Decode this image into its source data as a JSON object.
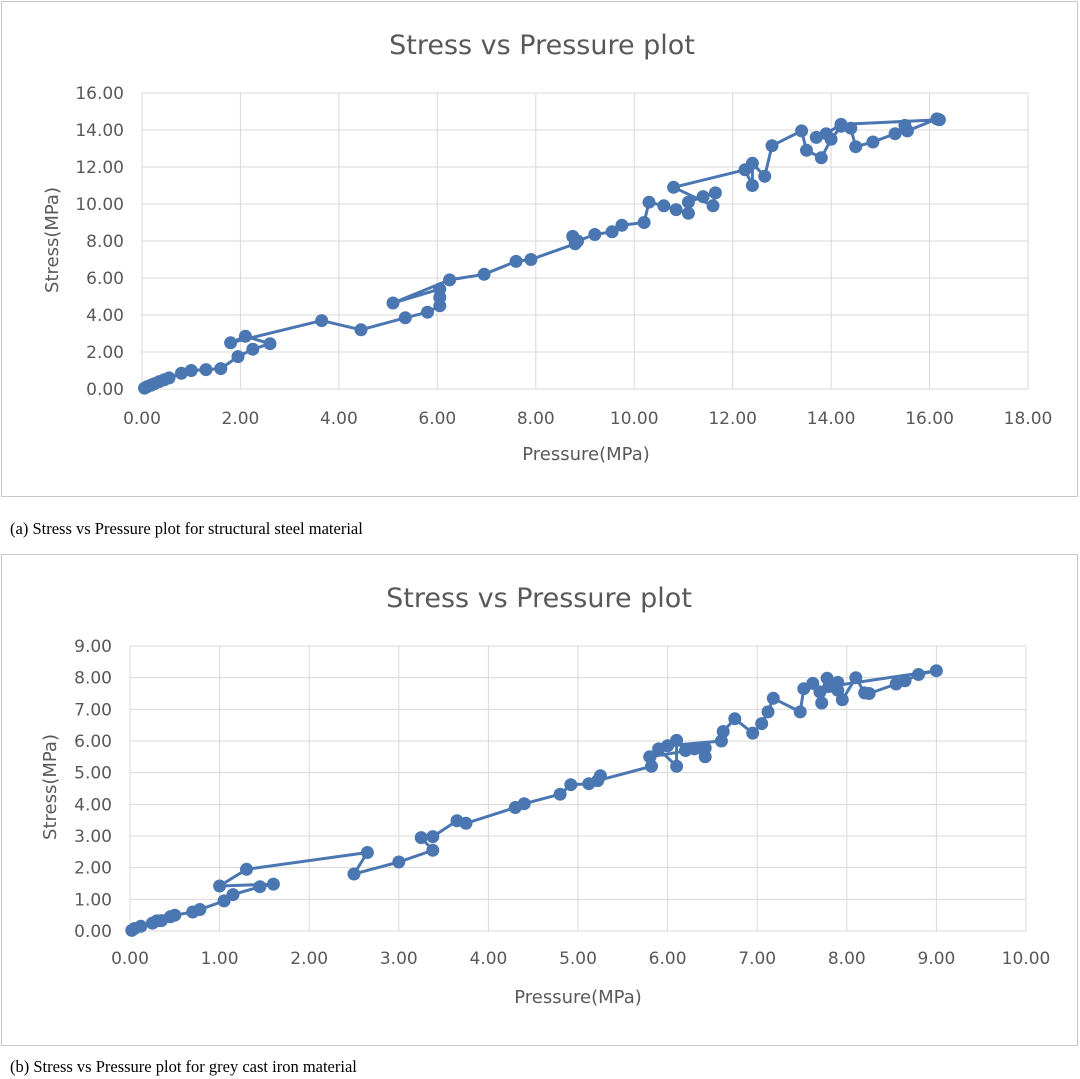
{
  "captions": [
    "(a) Stress vs Pressure plot for structural steel material",
    "(b) Stress vs Pressure plot for grey cast iron material"
  ],
  "chart_data": [
    {
      "type": "scatter",
      "title": "Stress vs Pressure plot",
      "xlabel": "Pressure(MPa)",
      "ylabel": "Stress(MPa)",
      "xlim": [
        0,
        18
      ],
      "ylim": [
        0,
        16
      ],
      "x_ticks": [
        "0.00",
        "2.00",
        "4.00",
        "6.00",
        "8.00",
        "10.00",
        "12.00",
        "14.00",
        "16.00",
        "18.00"
      ],
      "y_ticks": [
        "0.00",
        "2.00",
        "4.00",
        "6.00",
        "8.00",
        "10.00",
        "12.00",
        "14.00",
        "16.00"
      ],
      "grid": true,
      "legend": "none",
      "color": "#4a76b1",
      "series": [
        {
          "x": [
            0.05,
            0.1,
            0.18,
            0.25,
            0.35,
            0.45,
            0.55,
            0.8,
            1.0,
            1.3,
            1.6,
            1.95,
            2.25,
            2.6,
            2.1,
            1.8,
            3.65,
            4.45,
            5.35,
            5.8,
            6.05,
            6.05,
            6.05,
            5.1,
            6.25,
            6.95,
            7.6,
            7.9,
            8.8,
            8.75,
            8.85,
            9.2,
            9.55,
            9.75,
            10.2,
            10.3,
            10.6,
            10.85,
            11.1,
            11.1,
            11.4,
            11.65,
            11.6,
            10.8,
            12.25,
            12.4,
            12.4,
            12.65,
            12.8,
            13.4,
            13.5,
            13.8,
            14.0,
            14.2,
            14.4,
            14.5,
            14.85,
            15.3,
            15.5,
            15.55,
            16.15,
            16.2,
            14.2,
            13.9,
            13.7
          ],
          "y": [
            0.05,
            0.12,
            0.2,
            0.28,
            0.4,
            0.5,
            0.6,
            0.85,
            1.0,
            1.05,
            1.1,
            1.75,
            2.15,
            2.45,
            2.85,
            2.5,
            3.7,
            3.2,
            3.85,
            4.15,
            4.5,
            4.95,
            5.4,
            4.65,
            5.9,
            6.2,
            6.9,
            7.0,
            7.85,
            8.25,
            8.0,
            8.35,
            8.5,
            8.85,
            9.0,
            10.1,
            9.9,
            9.7,
            9.5,
            10.1,
            10.4,
            10.6,
            9.9,
            10.9,
            11.85,
            11.0,
            12.2,
            11.5,
            13.15,
            13.95,
            12.9,
            12.5,
            13.5,
            14.2,
            14.1,
            13.1,
            13.35,
            13.8,
            14.25,
            13.95,
            14.6,
            14.55,
            14.3,
            13.8,
            13.6
          ]
        }
      ]
    },
    {
      "type": "scatter",
      "title": "Stress vs Pressure plot",
      "xlabel": "Pressure(MPa)",
      "ylabel": "Stress(MPa)",
      "xlim": [
        0,
        10
      ],
      "ylim": [
        0,
        9
      ],
      "x_ticks": [
        "0.00",
        "1.00",
        "2.00",
        "3.00",
        "4.00",
        "5.00",
        "6.00",
        "7.00",
        "8.00",
        "9.00",
        "10.00"
      ],
      "y_ticks": [
        "0.00",
        "1.00",
        "2.00",
        "3.00",
        "4.00",
        "5.00",
        "6.00",
        "7.00",
        "8.00",
        "9.00"
      ],
      "grid": true,
      "legend": "none",
      "color": "#4a76b1",
      "series": [
        {
          "x": [
            0.02,
            0.05,
            0.12,
            0.25,
            0.3,
            0.35,
            0.45,
            0.5,
            0.7,
            0.78,
            1.05,
            1.15,
            1.45,
            1.6,
            1.0,
            1.3,
            2.65,
            2.5,
            3.0,
            3.38,
            3.25,
            3.38,
            3.65,
            3.75,
            4.3,
            4.4,
            4.8,
            4.92,
            5.12,
            5.25,
            5.22,
            5.82,
            5.9,
            6.1,
            6.1,
            6.2,
            6.3,
            6.42,
            6.42,
            5.8,
            6.0,
            6.6,
            6.62,
            6.75,
            6.95,
            7.05,
            7.12,
            7.18,
            7.48,
            7.52,
            7.62,
            7.72,
            7.78,
            7.9,
            7.95,
            8.1,
            8.2,
            8.25,
            8.55,
            8.65,
            8.8,
            9.0,
            7.8,
            7.9,
            7.7
          ],
          "y": [
            0.02,
            0.08,
            0.15,
            0.25,
            0.32,
            0.33,
            0.45,
            0.5,
            0.6,
            0.68,
            0.95,
            1.15,
            1.4,
            1.48,
            1.42,
            1.95,
            2.48,
            1.8,
            2.18,
            2.55,
            2.95,
            2.98,
            3.48,
            3.4,
            3.9,
            4.02,
            4.32,
            4.62,
            4.65,
            4.9,
            4.75,
            5.2,
            5.75,
            5.2,
            6.02,
            5.7,
            5.75,
            5.5,
            5.78,
            5.5,
            5.85,
            6.0,
            6.3,
            6.7,
            6.25,
            6.55,
            6.92,
            7.35,
            6.92,
            7.65,
            7.82,
            7.2,
            7.98,
            7.85,
            7.3,
            8.0,
            7.52,
            7.5,
            7.8,
            7.9,
            8.1,
            8.22,
            7.72,
            7.6,
            7.55
          ]
        }
      ]
    }
  ]
}
